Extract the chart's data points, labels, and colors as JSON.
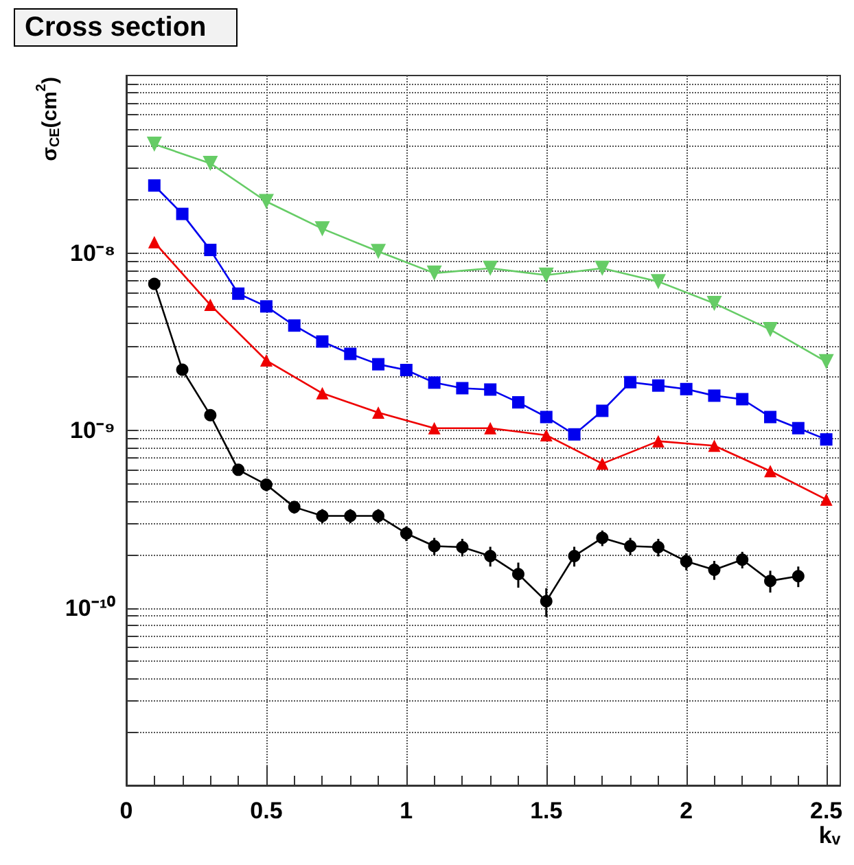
{
  "chart_data": {
    "type": "line",
    "title": "Cross section",
    "xlabel": "kᵥ",
    "ylabel": "σ$_{CE}$(cm$^{2}$)",
    "log": "y",
    "grid": true,
    "line_style": "solid",
    "xlim": [
      0,
      2.55
    ],
    "xticks": [
      0,
      0.5,
      1,
      1.5,
      2,
      2.5
    ],
    "ylim": [
      1e-11,
      1e-07
    ],
    "yticks": [
      {
        "value": 2e-11,
        "label": null
      },
      {
        "value": 3e-11,
        "label": null
      },
      {
        "value": 4e-11,
        "label": null
      },
      {
        "value": 5e-11,
        "label": null
      },
      {
        "value": 6e-11,
        "label": null
      },
      {
        "value": 7e-11,
        "label": null
      },
      {
        "value": 8e-11,
        "label": null
      },
      {
        "value": 9e-11,
        "label": null
      },
      {
        "value": 1e-10,
        "label": "10⁻¹⁰"
      },
      {
        "value": 2e-10,
        "label": null
      },
      {
        "value": 3e-10,
        "label": null
      },
      {
        "value": 4e-10,
        "label": null
      },
      {
        "value": 5e-10,
        "label": null
      },
      {
        "value": 6e-10,
        "label": null
      },
      {
        "value": 7e-10,
        "label": null
      },
      {
        "value": 8e-10,
        "label": null
      },
      {
        "value": 9e-10,
        "label": null
      },
      {
        "value": 1e-09,
        "label": "10⁻⁹"
      },
      {
        "value": 2e-09,
        "label": null
      },
      {
        "value": 3e-09,
        "label": null
      },
      {
        "value": 4e-09,
        "label": null
      },
      {
        "value": 5e-09,
        "label": null
      },
      {
        "value": 6e-09,
        "label": null
      },
      {
        "value": 7e-09,
        "label": null
      },
      {
        "value": 8e-09,
        "label": null
      },
      {
        "value": 9e-09,
        "label": null
      },
      {
        "value": 1e-08,
        "label": "10⁻⁸"
      },
      {
        "value": 2e-08,
        "label": null
      },
      {
        "value": 3e-08,
        "label": null
      },
      {
        "value": 4e-08,
        "label": null
      },
      {
        "value": 5e-08,
        "label": null
      },
      {
        "value": 6e-08,
        "label": null
      },
      {
        "value": 7e-08,
        "label": null
      },
      {
        "value": 8e-08,
        "label": null
      },
      {
        "value": 9e-08,
        "label": null
      }
    ],
    "series": [
      {
        "color": "#66cc66",
        "marker": "triangle_down",
        "x": [
          0.1,
          0.3,
          0.5,
          0.7,
          0.9,
          1.1,
          1.3,
          1.5,
          1.7,
          1.9,
          2.1,
          2.3,
          2.5
        ],
        "values": [
          4.1e-08,
          3.2e-08,
          1.95e-08,
          1.37e-08,
          1.02e-08,
          7.7e-09,
          8.2e-09,
          7.5e-09,
          8.2e-09,
          6.9e-09,
          5.2e-09,
          3.7e-09,
          2.44e-09
        ]
      },
      {
        "color": "#0000ee",
        "marker": "square",
        "x": [
          0.1,
          0.2,
          0.3,
          0.4,
          0.5,
          0.6,
          0.7,
          0.8,
          0.9,
          1.0,
          1.1,
          1.2,
          1.3,
          1.4,
          1.5,
          1.6,
          1.7,
          1.8,
          1.9,
          2.0,
          2.1,
          2.2,
          2.3,
          2.4,
          2.5
        ],
        "values": [
          2.4e-08,
          1.66e-08,
          1.04e-08,
          5.9e-09,
          5e-09,
          3.9e-09,
          3.17e-09,
          2.7e-09,
          2.36e-09,
          2.19e-09,
          1.86e-09,
          1.73e-09,
          1.7e-09,
          1.44e-09,
          1.19e-09,
          9.5e-10,
          1.29e-09,
          1.87e-09,
          1.79e-09,
          1.71e-09,
          1.57e-09,
          1.5e-09,
          1.19e-09,
          1.03e-09,
          8.9e-10
        ]
      },
      {
        "color": "#ee0000",
        "marker": "triangle",
        "x": [
          0.1,
          0.3,
          0.5,
          0.7,
          0.9,
          1.1,
          1.3,
          1.5,
          1.7,
          1.9,
          2.1,
          2.3,
          2.5
        ],
        "values": [
          1.15e-08,
          5.1e-09,
          2.48e-09,
          1.62e-09,
          1.26e-09,
          1.03e-09,
          1.03e-09,
          9.4e-10,
          6.5e-10,
          8.7e-10,
          8.2e-10,
          5.9e-10,
          4.08e-10
        ]
      },
      {
        "color": "#000000",
        "marker": "circle",
        "x": [
          0.1,
          0.2,
          0.3,
          0.4,
          0.5,
          0.6,
          0.7,
          0.8,
          0.9,
          1.0,
          1.1,
          1.2,
          1.3,
          1.4,
          1.5,
          1.6,
          1.7,
          1.8,
          1.9,
          2.0,
          2.1,
          2.2,
          2.3,
          2.4
        ],
        "values": [
          6.7e-09,
          2.2e-09,
          1.22e-09,
          6e-10,
          4.95e-10,
          3.7e-10,
          3.3e-10,
          3.3e-10,
          3.3e-10,
          2.63e-10,
          2.23e-10,
          2.2e-10,
          1.96e-10,
          1.55e-10,
          1.09e-10,
          1.96e-10,
          2.48e-10,
          2.23e-10,
          2.2e-10,
          1.83e-10,
          1.64e-10,
          1.87e-10,
          1.42e-10,
          1.51e-10
        ],
        "errors": [
          null,
          null,
          null,
          4e-11,
          4e-11,
          3e-11,
          3e-11,
          3e-11,
          3e-11,
          2.5e-11,
          2.5e-11,
          2.5e-11,
          2.5e-11,
          2.5e-11,
          2e-11,
          2.5e-11,
          2.5e-11,
          2.5e-11,
          2.5e-11,
          2e-11,
          2e-11,
          2e-11,
          2e-11,
          2e-11
        ]
      }
    ]
  }
}
